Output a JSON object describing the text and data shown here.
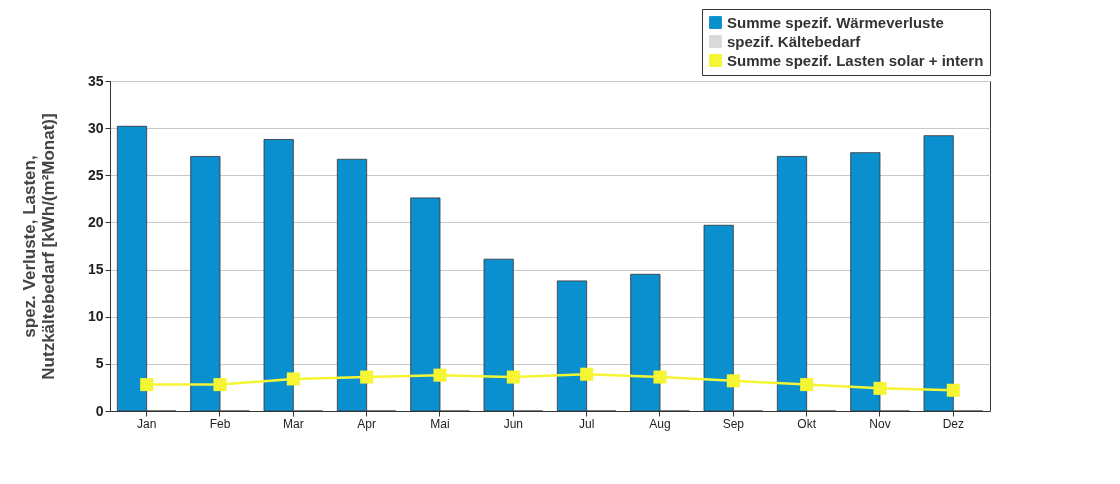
{
  "chart_data": {
    "type": "bar",
    "ylabel": "spez. Verluste, Lasten, Nutzkältebedarf [kWh/(m²Monat)]",
    "categories": [
      "Jan",
      "Feb",
      "Mar",
      "Apr",
      "Mai",
      "Jun",
      "Jul",
      "Aug",
      "Sep",
      "Okt",
      "Nov",
      "Dez"
    ],
    "series": [
      {
        "name": "Summe spezif. Wärmeverluste",
        "color": "#0a8fcf",
        "values": [
          30.2,
          27.0,
          28.8,
          26.7,
          22.6,
          16.1,
          13.8,
          14.5,
          19.7,
          27.0,
          27.4,
          29.2
        ]
      },
      {
        "name": "spezif. Kältebedarf",
        "color": "#d9d9d9",
        "values": [
          0,
          0,
          0,
          0,
          0,
          0,
          0,
          0,
          0,
          0,
          0,
          0
        ]
      },
      {
        "name": "Summe spezif. Lasten solar + intern",
        "type": "line",
        "color": "#f5f533",
        "values": [
          2.8,
          2.8,
          3.4,
          3.6,
          3.8,
          3.6,
          3.9,
          3.6,
          3.2,
          2.8,
          2.4,
          2.2
        ]
      }
    ],
    "ylim": [
      0,
      35
    ],
    "yticks": [
      0,
      5,
      10,
      15,
      20,
      25,
      30,
      35
    ],
    "grid": "y",
    "legend": "top right",
    "marker": "square",
    "line_style": "solid"
  }
}
